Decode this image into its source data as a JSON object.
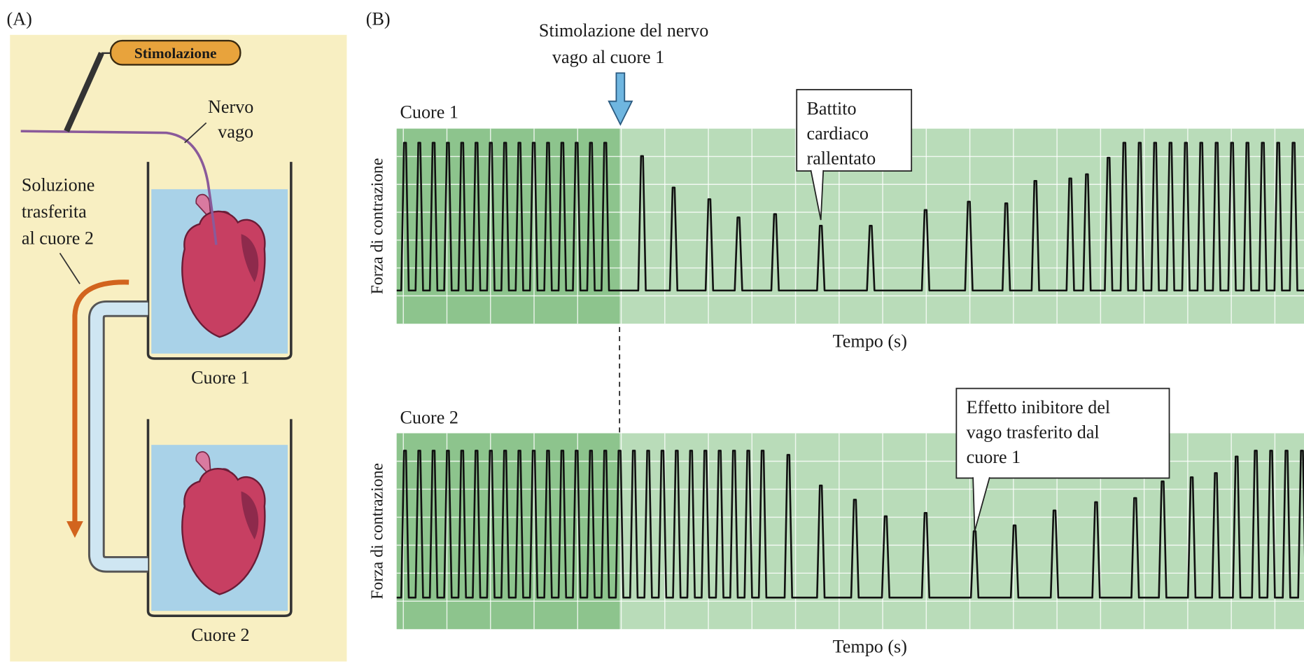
{
  "panel_a": {
    "label": "(A)",
    "stimulation": "Stimolazione",
    "nerve": [
      "Nervo",
      "vago"
    ],
    "solution": [
      "Soluzione",
      "trasferita",
      "al cuore 2"
    ],
    "heart_1": "Cuore 1",
    "heart_2": "Cuore 2"
  },
  "panel_b": {
    "label": "(B)",
    "stimulus": [
      "Stimolazione del nervo",
      "vago al cuore 1"
    ],
    "traces": [
      {
        "title": "Cuore 1",
        "y_label": "Forza di contrazione",
        "x_label": "Tempo (s)",
        "callout": [
          "Battito",
          "cardiaco",
          "rallentato"
        ]
      },
      {
        "title": "Cuore 2",
        "y_label": "Forza di contrazione",
        "x_label": "Tempo (s)",
        "callout": [
          "Effetto inibitore del",
          "vago trasferito dal",
          "cuore 1"
        ]
      }
    ]
  }
}
